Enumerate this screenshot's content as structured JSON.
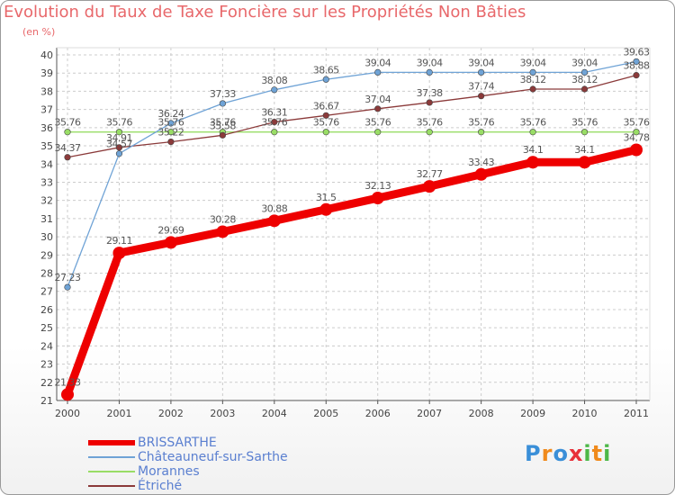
{
  "colors": {
    "title": "#e8686b",
    "brissarthe": "#ee0000",
    "chateauneuf": "#6fa3d6",
    "morannes": "#99dd66",
    "etriche": "#8b3a3a",
    "grid": "#cccccc",
    "legend_text": "#5a7fd0"
  },
  "chart_data": {
    "type": "line",
    "title": "Evolution du Taux de Taxe Foncière sur les Propriétés Non Bâties",
    "subtitle": "(en %)",
    "xlabel": "",
    "ylabel": "",
    "x": [
      "2000",
      "2001",
      "2002",
      "2003",
      "2004",
      "2005",
      "2006",
      "2007",
      "2008",
      "2009",
      "2010",
      "2011"
    ],
    "y_ticks": [
      "21",
      "22",
      "23",
      "24",
      "25",
      "26",
      "27",
      "28",
      "29",
      "30",
      "31",
      "32",
      "33",
      "34",
      "35",
      "36",
      "37",
      "38",
      "39",
      "40"
    ],
    "ylim": [
      21,
      40
    ],
    "grid": true,
    "series": [
      {
        "name": "BRISSARTHE",
        "key": "brissarthe",
        "values": [
          21.33,
          29.11,
          29.69,
          30.28,
          30.88,
          31.5,
          32.13,
          32.77,
          33.43,
          34.1,
          34.1,
          34.78
        ],
        "labels": [
          "21.33",
          "29.11",
          "29.69",
          "30.28",
          "30.88",
          "31.5",
          "32.13",
          "32.77",
          "33.43",
          "34.1",
          "34.1",
          "34.78"
        ]
      },
      {
        "name": "Châteauneuf-sur-Sarthe",
        "key": "chateauneuf",
        "values": [
          27.23,
          34.57,
          36.24,
          37.33,
          38.08,
          38.65,
          39.04,
          39.04,
          39.04,
          39.04,
          39.04,
          39.63
        ],
        "labels": [
          "27.23",
          "34.57",
          "36.24",
          "37.33",
          "38.08",
          "38.65",
          "39.04",
          "39.04",
          "39.04",
          "39.04",
          "39.04",
          "39.63"
        ]
      },
      {
        "name": "Morannes",
        "key": "morannes",
        "values": [
          35.76,
          35.76,
          35.76,
          35.76,
          35.76,
          35.76,
          35.76,
          35.76,
          35.76,
          35.76,
          35.76,
          35.76
        ],
        "labels": [
          "35.76",
          "35.76",
          "35.76",
          "35.76",
          "35.76",
          "35.76",
          "35.76",
          "35.76",
          "35.76",
          "35.76",
          "35.76",
          "35.76"
        ]
      },
      {
        "name": "Étriché",
        "key": "etriche",
        "values": [
          34.37,
          34.91,
          35.22,
          35.58,
          36.31,
          36.67,
          37.04,
          37.38,
          37.74,
          38.12,
          38.12,
          38.88
        ],
        "labels": [
          "34.37",
          "34.91",
          "35.22",
          "35.58",
          "36.31",
          "36.67",
          "37.04",
          "37.38",
          "37.74",
          "38.12",
          "38.12",
          "38.88"
        ]
      }
    ]
  },
  "logo": {
    "letters": [
      "P",
      "r",
      "o",
      "x",
      "i",
      "t",
      "i"
    ],
    "colors": [
      "#3a8fd8",
      "#f08a1c",
      "#3a8fd8",
      "#e8303a",
      "#4db848",
      "#f08a1c",
      "#4db848"
    ]
  }
}
